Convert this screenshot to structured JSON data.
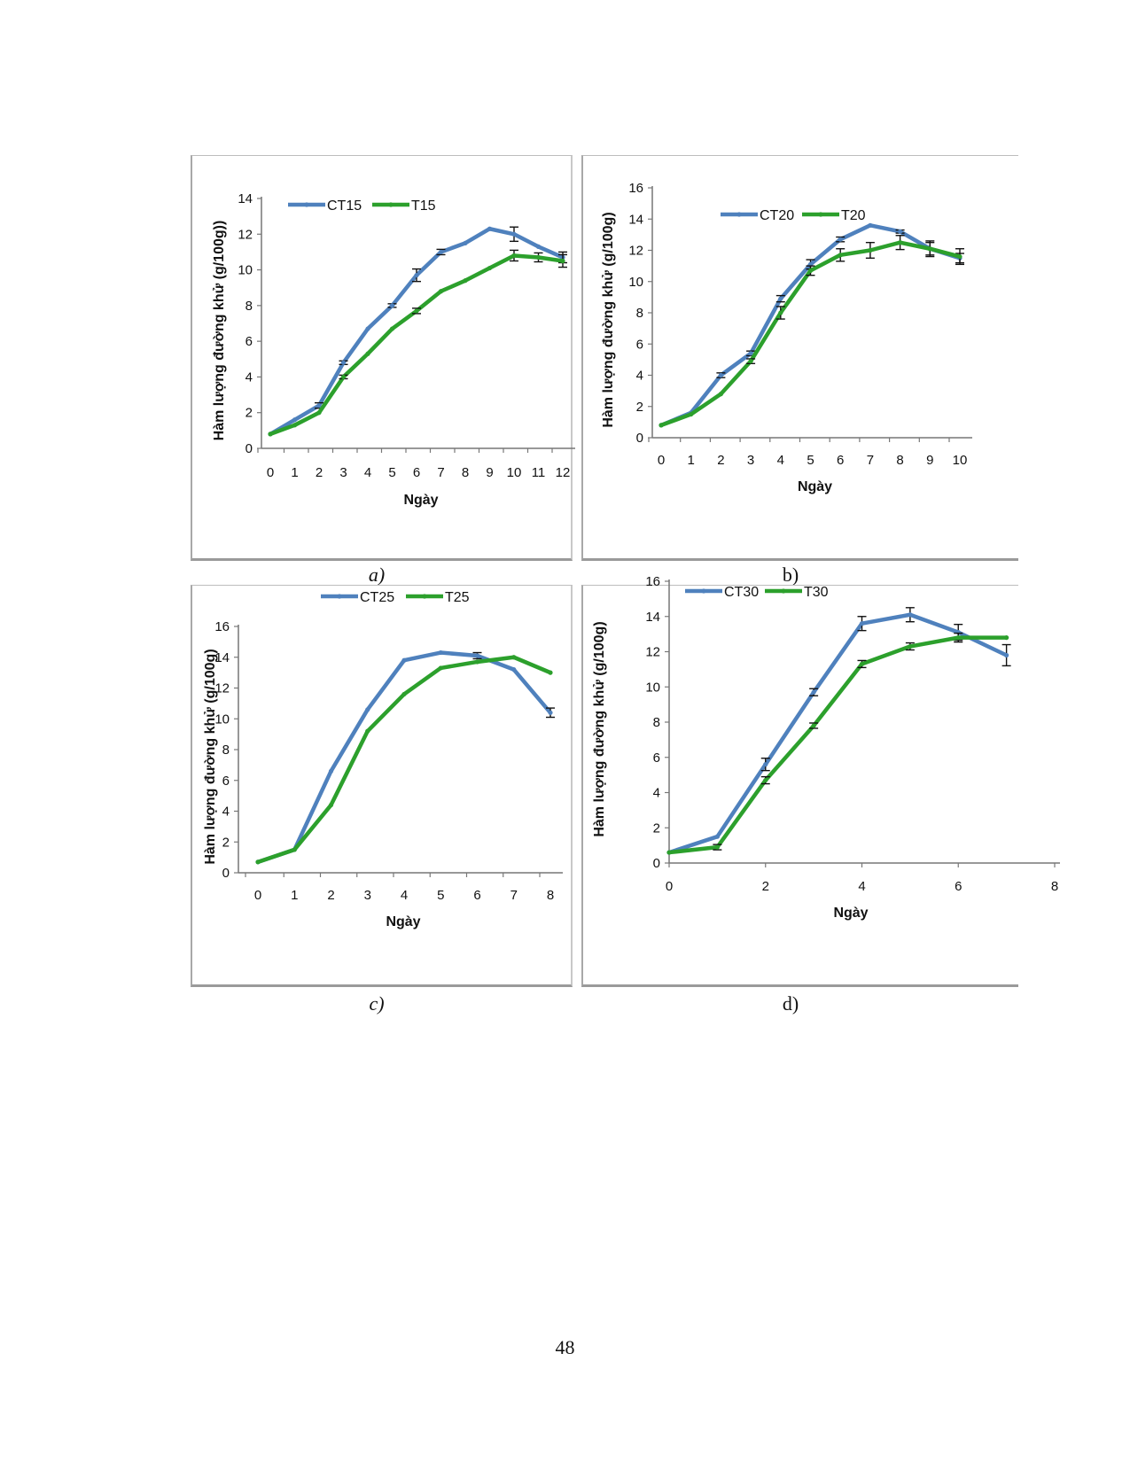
{
  "page": {
    "number": "48"
  },
  "chart_data": [
    {
      "id": "a",
      "type": "line",
      "caption": "a)",
      "xlabel": "Ngày",
      "ylabel": "Hàm lượng đường khử (g/100g))",
      "x": [
        0,
        1,
        2,
        3,
        4,
        5,
        6,
        7,
        8,
        9,
        10,
        11,
        12
      ],
      "xticks": [
        "0",
        "1",
        "2",
        "3",
        "4",
        "5",
        "6",
        "7",
        "8",
        "9",
        "10",
        "11",
        "12"
      ],
      "ylim": [
        0,
        14
      ],
      "yticks": [
        0,
        2,
        4,
        6,
        8,
        10,
        12,
        14
      ],
      "colors": {
        "CT": "#4f81bd",
        "T": "#2ca02c"
      },
      "series": [
        {
          "name": "CT15",
          "values": [
            0.8,
            1.6,
            2.4,
            4.8,
            6.7,
            8.0,
            9.7,
            11.0,
            11.5,
            12.3,
            12.0,
            11.3,
            10.7
          ],
          "errors": [
            0,
            0,
            0.15,
            0.1,
            0,
            0.1,
            0.35,
            0.15,
            0,
            0,
            0.4,
            0,
            0.3
          ]
        },
        {
          "name": "T15",
          "values": [
            0.8,
            1.3,
            2.0,
            4.0,
            5.3,
            6.7,
            7.7,
            8.8,
            9.4,
            10.1,
            10.8,
            10.7,
            10.5
          ],
          "errors": [
            0,
            0,
            0,
            0.1,
            0,
            0,
            0.15,
            0,
            0,
            0,
            0.3,
            0.25,
            0.35
          ]
        }
      ],
      "legend": "top-left"
    },
    {
      "id": "b",
      "type": "line",
      "caption": "b)",
      "xlabel": "Ngày",
      "ylabel": "Hàm lượng đường khử (g/100g)",
      "x": [
        0,
        1,
        2,
        3,
        4,
        5,
        6,
        7,
        8,
        9,
        10
      ],
      "xticks": [
        "0",
        "1",
        "2",
        "3",
        "4",
        "5",
        "6",
        "7",
        "8",
        "9",
        "10"
      ],
      "ylim": [
        0,
        16
      ],
      "yticks": [
        0,
        2,
        4,
        6,
        8,
        10,
        12,
        14,
        16
      ],
      "colors": {
        "CT": "#4f81bd",
        "T": "#2ca02c"
      },
      "series": [
        {
          "name": "CT20",
          "values": [
            0.8,
            1.6,
            4.0,
            5.4,
            8.9,
            11.1,
            12.7,
            13.6,
            13.2,
            12.1,
            11.5
          ],
          "errors": [
            0,
            0,
            0.15,
            0.15,
            0.2,
            0.3,
            0.15,
            0,
            0.1,
            0.4,
            0.3
          ]
        },
        {
          "name": "T20",
          "values": [
            0.8,
            1.5,
            2.8,
            4.9,
            8.0,
            10.7,
            11.7,
            12.0,
            12.5,
            12.1,
            11.6
          ],
          "errors": [
            0,
            0,
            0,
            0.15,
            0.4,
            0.3,
            0.4,
            0.5,
            0.45,
            0.5,
            0.5
          ]
        }
      ],
      "legend": "top"
    },
    {
      "id": "c",
      "type": "line",
      "caption": "c)",
      "xlabel": "Ngày",
      "ylabel": "Hàm lượng đường khử (g/100g)",
      "x": [
        0,
        1,
        2,
        3,
        4,
        5,
        6,
        7,
        8
      ],
      "xticks": [
        "0",
        "1",
        "2",
        "3",
        "4",
        "5",
        "6",
        "7",
        "8"
      ],
      "ylim": [
        0,
        16
      ],
      "yticks": [
        0,
        2,
        4,
        6,
        8,
        10,
        12,
        14,
        16
      ],
      "colors": {
        "CT": "#4f81bd",
        "T": "#2ca02c"
      },
      "series": [
        {
          "name": "CT25",
          "values": [
            0.7,
            1.5,
            6.6,
            10.6,
            13.8,
            14.3,
            14.1,
            13.2,
            10.4
          ],
          "errors": [
            0,
            0,
            0,
            0,
            0,
            0,
            0.2,
            0,
            0.3
          ]
        },
        {
          "name": "T25",
          "values": [
            0.7,
            1.5,
            4.4,
            9.2,
            11.6,
            13.3,
            13.7,
            14.0,
            13.0
          ],
          "errors": [
            0,
            0,
            0,
            0,
            0,
            0,
            0,
            0,
            0
          ]
        }
      ],
      "legend": "above"
    },
    {
      "id": "d",
      "type": "line",
      "caption": "d)",
      "xlabel": "Ngày",
      "ylabel": "Hàm lượng đường khử (g/100g)",
      "x": [
        0,
        1,
        2,
        3,
        4,
        5,
        6,
        7
      ],
      "xticks": [
        "0",
        "2",
        "4",
        "6",
        "8"
      ],
      "xtick_values": [
        0,
        2,
        4,
        6,
        8
      ],
      "xlim": [
        0,
        8
      ],
      "ylim": [
        0,
        16
      ],
      "yticks": [
        0,
        2,
        4,
        6,
        8,
        10,
        12,
        14,
        16
      ],
      "colors": {
        "CT": "#4f81bd",
        "T": "#2ca02c"
      },
      "series": [
        {
          "name": "CT30",
          "values": [
            0.6,
            1.5,
            5.6,
            9.7,
            13.6,
            14.1,
            13.1,
            11.8
          ],
          "errors": [
            0,
            0,
            0.35,
            0.2,
            0.4,
            0.4,
            0.45,
            0.6
          ]
        },
        {
          "name": "T30",
          "values": [
            0.6,
            0.9,
            4.7,
            7.8,
            11.3,
            12.3,
            12.8,
            12.8
          ],
          "errors": [
            0,
            0.15,
            0.2,
            0.15,
            0.2,
            0.2,
            0.25,
            0
          ]
        }
      ],
      "legend": "top-left"
    }
  ]
}
